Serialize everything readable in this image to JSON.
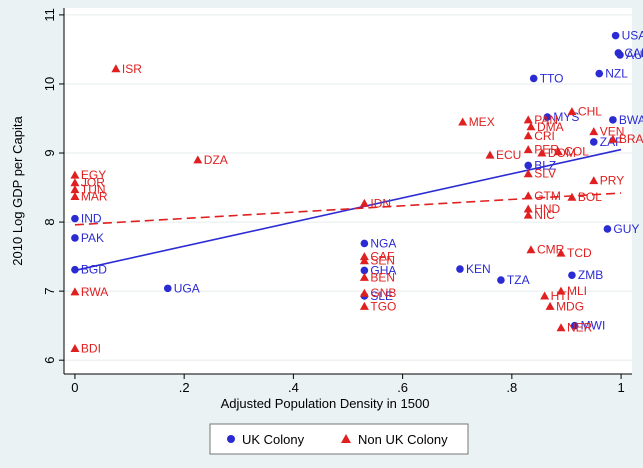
{
  "chart_data": {
    "type": "scatter",
    "xlabel": "Adjusted Population Density in 1500",
    "ylabel": "2010 Log GDP per Capita",
    "xlim": [
      -0.02,
      1.02
    ],
    "ylim": [
      5.8,
      11.1
    ],
    "x_ticks": [
      0,
      0.2,
      0.4,
      0.6,
      0.8,
      1
    ],
    "x_tick_labels": [
      "0",
      ".2",
      ".4",
      ".6",
      ".8",
      "1"
    ],
    "y_ticks": [
      6,
      7,
      8,
      9,
      10,
      11
    ],
    "y_tick_labels": [
      "6",
      "7",
      "8",
      "9",
      "10",
      "11"
    ],
    "grid": "horizontal",
    "legend_position": "bottom",
    "colors": {
      "uk": "#2b2bd4",
      "nonuk": "#e02020",
      "plot_bg": "#ffffff",
      "page_bg": "#eaf2f3",
      "grid": "#e6ecec"
    },
    "series": [
      {
        "name": "UK Colony",
        "marker": "circle",
        "points": [
          {
            "label": "USA",
            "x": 0.99,
            "y": 10.7
          },
          {
            "label": "CAN",
            "x": 0.995,
            "y": 10.45
          },
          {
            "label": "AUS",
            "x": 0.998,
            "y": 10.42
          },
          {
            "label": "NZL",
            "x": 0.96,
            "y": 10.15
          },
          {
            "label": "TTO",
            "x": 0.84,
            "y": 10.08
          },
          {
            "label": "MYS",
            "x": 0.865,
            "y": 9.52
          },
          {
            "label": "BWA",
            "x": 0.985,
            "y": 9.48
          },
          {
            "label": "ZAF",
            "x": 0.95,
            "y": 9.16
          },
          {
            "label": "BLZ",
            "x": 0.83,
            "y": 8.82
          },
          {
            "label": "GUY",
            "x": 0.975,
            "y": 7.9
          },
          {
            "label": "IND",
            "x": 0.0,
            "y": 8.05
          },
          {
            "label": "PAK",
            "x": 0.0,
            "y": 7.77
          },
          {
            "label": "BGD",
            "x": 0.0,
            "y": 7.31
          },
          {
            "label": "UGA",
            "x": 0.17,
            "y": 7.04
          },
          {
            "label": "NGA",
            "x": 0.53,
            "y": 7.69
          },
          {
            "label": "GHA",
            "x": 0.53,
            "y": 7.3
          },
          {
            "label": "SLE",
            "x": 0.53,
            "y": 6.93
          },
          {
            "label": "KEN",
            "x": 0.705,
            "y": 7.32
          },
          {
            "label": "TZA",
            "x": 0.78,
            "y": 7.16
          },
          {
            "label": "ZMB",
            "x": 0.91,
            "y": 7.23
          },
          {
            "label": "MWI",
            "x": 0.915,
            "y": 6.5
          }
        ]
      },
      {
        "name": "Non UK Colony",
        "marker": "triangle",
        "points": [
          {
            "label": "ISR",
            "x": 0.075,
            "y": 10.22
          },
          {
            "label": "MEX",
            "x": 0.71,
            "y": 9.45
          },
          {
            "label": "PAN",
            "x": 0.83,
            "y": 9.48
          },
          {
            "label": "DMA",
            "x": 0.835,
            "y": 9.38
          },
          {
            "label": "CRI",
            "x": 0.83,
            "y": 9.25
          },
          {
            "label": "CHL",
            "x": 0.91,
            "y": 9.6
          },
          {
            "label": "VEN",
            "x": 0.95,
            "y": 9.31
          },
          {
            "label": "BRA",
            "x": 0.985,
            "y": 9.2
          },
          {
            "label": "PER",
            "x": 0.83,
            "y": 9.05
          },
          {
            "label": "DOM",
            "x": 0.855,
            "y": 9.0
          },
          {
            "label": "COL",
            "x": 0.885,
            "y": 9.02
          },
          {
            "label": "ECU",
            "x": 0.76,
            "y": 8.97
          },
          {
            "label": "SLV",
            "x": 0.83,
            "y": 8.7
          },
          {
            "label": "PRY",
            "x": 0.95,
            "y": 8.6
          },
          {
            "label": "GTM",
            "x": 0.83,
            "y": 8.38
          },
          {
            "label": "BOL",
            "x": 0.91,
            "y": 8.36
          },
          {
            "label": "HND",
            "x": 0.83,
            "y": 8.19
          },
          {
            "label": "NIC",
            "x": 0.83,
            "y": 8.1
          },
          {
            "label": "CMR",
            "x": 0.835,
            "y": 7.6
          },
          {
            "label": "TCD",
            "x": 0.89,
            "y": 7.55
          },
          {
            "label": "MLI",
            "x": 0.89,
            "y": 7.0
          },
          {
            "label": "HTI",
            "x": 0.86,
            "y": 6.93
          },
          {
            "label": "MDG",
            "x": 0.87,
            "y": 6.78
          },
          {
            "label": "NER",
            "x": 0.89,
            "y": 6.47
          },
          {
            "label": "DZA",
            "x": 0.225,
            "y": 8.9
          },
          {
            "label": "EGY",
            "x": 0.0,
            "y": 8.68
          },
          {
            "label": "JOR",
            "x": 0.0,
            "y": 8.57
          },
          {
            "label": "TUN",
            "x": 0.0,
            "y": 8.47
          },
          {
            "label": "MAR",
            "x": 0.0,
            "y": 8.37
          },
          {
            "label": "IDN",
            "x": 0.53,
            "y": 8.27
          },
          {
            "label": "CAF",
            "x": 0.53,
            "y": 7.5
          },
          {
            "label": "SEN",
            "x": 0.53,
            "y": 7.44
          },
          {
            "label": "BEN",
            "x": 0.53,
            "y": 7.2
          },
          {
            "label": "GNB",
            "x": 0.53,
            "y": 6.97
          },
          {
            "label": "TGO",
            "x": 0.53,
            "y": 6.78
          },
          {
            "label": "RWA",
            "x": 0.0,
            "y": 6.99
          },
          {
            "label": "BDI",
            "x": 0.0,
            "y": 6.17
          }
        ]
      }
    ],
    "fit_lines": [
      {
        "series": "UK Colony",
        "style": "solid",
        "x": [
          0,
          1
        ],
        "y": [
          7.3,
          9.05
        ]
      },
      {
        "series": "Non UK Colony",
        "style": "dashed",
        "x": [
          0,
          1
        ],
        "y": [
          7.96,
          8.42
        ]
      }
    ]
  }
}
